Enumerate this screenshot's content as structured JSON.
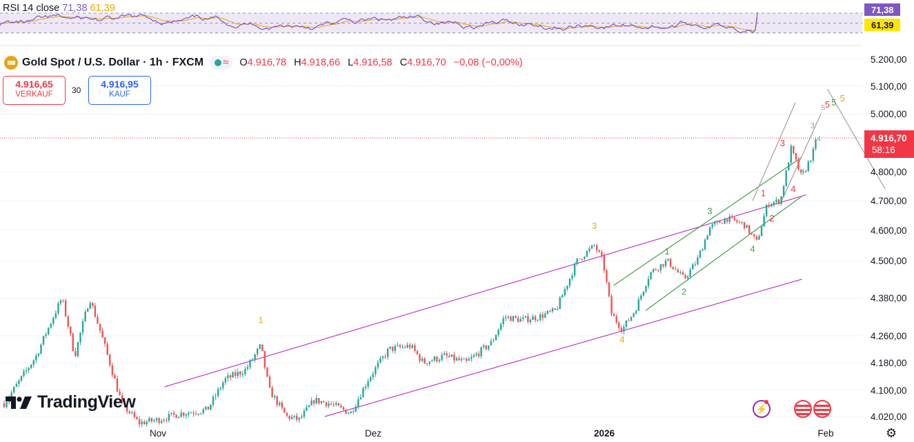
{
  "header": {
    "title": "Gold Spot / U.S. Dollar · 1h · FXCM",
    "ohlc": [
      {
        "k": "O",
        "v": "4.916,78"
      },
      {
        "k": "H",
        "v": "4.918,66"
      },
      {
        "k": "L",
        "v": "4.916,58"
      },
      {
        "k": "C",
        "v": "4.916,70"
      }
    ],
    "change": "−0,08 (−0,00%)"
  },
  "trade": {
    "sell_price": "4.916,65",
    "sell_label": "VERKAUF",
    "spread": "30",
    "buy_price": "4.916,95",
    "buy_label": "KAUF"
  },
  "rsi": {
    "label": "RSI 14 close",
    "value1": "71,38",
    "value2": "61,39"
  },
  "price_tag": {
    "price": "4.916,70",
    "countdown": "58:16"
  },
  "branding": {
    "logo_text": "TradingView"
  },
  "colors": {
    "up": "#26a69a",
    "down": "#ef5350",
    "channel": "#c237c9",
    "wave_orange": "#f0a500",
    "wave_green": "#43a047",
    "wave_red": "#e53935",
    "wave_gray": "#9e9e9e",
    "rsi_line": "#7e57c2",
    "rsi_ma": "#f0a500",
    "last_price": "#f23645"
  },
  "chart_data": {
    "type": "candlestick",
    "timeframe": "1h",
    "symbol": "Gold Spot / U.S. Dollar",
    "x_ticks": [
      "Nov",
      "Dez",
      "2026",
      "Feb"
    ],
    "y_ticks": [
      4020,
      4100,
      4180,
      4260,
      4380,
      4500,
      4600,
      4700,
      4800,
      5000,
      5100,
      5200
    ],
    "y_tick_labels": [
      "4.020,00",
      "4.100,00",
      "4.180,00",
      "4.260,00",
      "4.380,00",
      "4.500,00",
      "4.600,00",
      "4.700,00",
      "4.800,00",
      "5.000,00",
      "5.100,00",
      "5.200,00"
    ],
    "last_price": 4916.7,
    "price_path": [
      {
        "x": 0.0,
        "y": 4060
      },
      {
        "x": 1.5,
        "y": 4200
      },
      {
        "x": 2.7,
        "y": 4380
      },
      {
        "x": 3.3,
        "y": 4200
      },
      {
        "x": 4.0,
        "y": 4380
      },
      {
        "x": 5.5,
        "y": 4060
      },
      {
        "x": 6.3,
        "y": 4000
      },
      {
        "x": 7.2,
        "y": 4010
      },
      {
        "x": 8.3,
        "y": 4030
      },
      {
        "x": 9.5,
        "y": 4040
      },
      {
        "x": 10.3,
        "y": 4130
      },
      {
        "x": 11.3,
        "y": 4160
      },
      {
        "x": 12.0,
        "y": 4230
      },
      {
        "x": 12.4,
        "y": 4100
      },
      {
        "x": 13.2,
        "y": 4020
      },
      {
        "x": 13.8,
        "y": 4010
      },
      {
        "x": 14.5,
        "y": 4070
      },
      {
        "x": 15.2,
        "y": 4060
      },
      {
        "x": 16.2,
        "y": 4030
      },
      {
        "x": 17.0,
        "y": 4130
      },
      {
        "x": 18.0,
        "y": 4220
      },
      {
        "x": 19.0,
        "y": 4230
      },
      {
        "x": 19.6,
        "y": 4180
      },
      {
        "x": 20.6,
        "y": 4200
      },
      {
        "x": 21.6,
        "y": 4180
      },
      {
        "x": 22.8,
        "y": 4240
      },
      {
        "x": 23.4,
        "y": 4320
      },
      {
        "x": 24.2,
        "y": 4310
      },
      {
        "x": 25.0,
        "y": 4320
      },
      {
        "x": 25.8,
        "y": 4340
      },
      {
        "x": 26.8,
        "y": 4500
      },
      {
        "x": 27.6,
        "y": 4550
      },
      {
        "x": 28.0,
        "y": 4500
      },
      {
        "x": 28.4,
        "y": 4330
      },
      {
        "x": 28.9,
        "y": 4280
      },
      {
        "x": 29.5,
        "y": 4340
      },
      {
        "x": 30.2,
        "y": 4460
      },
      {
        "x": 31.0,
        "y": 4500
      },
      {
        "x": 31.8,
        "y": 4440
      },
      {
        "x": 32.4,
        "y": 4500
      },
      {
        "x": 33.0,
        "y": 4610
      },
      {
        "x": 33.8,
        "y": 4640
      },
      {
        "x": 34.6,
        "y": 4620
      },
      {
        "x": 35.2,
        "y": 4560
      },
      {
        "x": 35.7,
        "y": 4690
      },
      {
        "x": 36.3,
        "y": 4700
      },
      {
        "x": 36.8,
        "y": 4880
      },
      {
        "x": 37.3,
        "y": 4780
      },
      {
        "x": 37.8,
        "y": 4860
      },
      {
        "x": 38.0,
        "y": 4917
      }
    ],
    "wave_labels": [
      {
        "t": "1",
        "x": 12.0,
        "y": 4300,
        "c": "wave_orange"
      },
      {
        "t": "3",
        "x": 27.6,
        "y": 4605,
        "c": "wave_orange"
      },
      {
        "t": "4",
        "x": 28.9,
        "y": 4240,
        "c": "wave_orange"
      },
      {
        "t": "5",
        "x": 39.2,
        "y": 5045,
        "c": "wave_orange"
      },
      {
        "t": "1",
        "x": 31.0,
        "y": 4520,
        "c": "wave_green"
      },
      {
        "t": "2",
        "x": 31.8,
        "y": 4390,
        "c": "wave_green"
      },
      {
        "t": "3",
        "x": 33.0,
        "y": 4655,
        "c": "wave_green"
      },
      {
        "t": "4",
        "x": 35.0,
        "y": 4528,
        "c": "wave_green"
      },
      {
        "t": "5",
        "x": 38.8,
        "y": 5030,
        "c": "wave_green"
      },
      {
        "t": "1",
        "x": 35.5,
        "y": 4715,
        "c": "wave_red"
      },
      {
        "t": "2",
        "x": 35.9,
        "y": 4630,
        "c": "wave_red"
      },
      {
        "t": "3",
        "x": 36.4,
        "y": 4888,
        "c": "wave_red"
      },
      {
        "t": "4",
        "x": 36.9,
        "y": 4730,
        "c": "wave_red"
      },
      {
        "t": "5",
        "x": 38.5,
        "y": 5022,
        "c": "wave_red"
      },
      {
        "t": "2",
        "x": 37.3,
        "y": 4790,
        "c": "wave_gray"
      },
      {
        "t": "3",
        "x": 37.8,
        "y": 4950,
        "c": "wave_gray"
      },
      {
        "t": "4",
        "x": 38.1,
        "y": 4905,
        "c": "wave_gray"
      },
      {
        "t": "5",
        "x": 38.3,
        "y": 5012,
        "c": "wave_gray"
      }
    ],
    "channels": [
      {
        "c": "channel",
        "a": [
          {
            "x": 7.5,
            "y": 4110
          },
          {
            "x": 37.5,
            "y": 4720
          }
        ],
        "b": [
          {
            "x": 15.0,
            "y": 4020
          },
          {
            "x": 37.3,
            "y": 4440
          }
        ]
      },
      {
        "c": "wave_green",
        "a": [
          {
            "x": 28.5,
            "y": 4420
          },
          {
            "x": 37.3,
            "y": 4850
          }
        ],
        "b": [
          {
            "x": 30.0,
            "y": 4340
          },
          {
            "x": 37.3,
            "y": 4715
          }
        ]
      },
      {
        "c": "wave_gray",
        "a": [
          {
            "x": 35.0,
            "y": 4700
          },
          {
            "x": 37.0,
            "y": 5040
          }
        ],
        "b": [
          {
            "x": 36.3,
            "y": 4690
          },
          {
            "x": 38.2,
            "y": 5000
          }
        ]
      }
    ],
    "projection": [
      {
        "x": 38.5,
        "y": 5090
      },
      {
        "x": 41.2,
        "y": 4740
      }
    ],
    "rsi_levels": [
      70,
      50,
      30
    ]
  }
}
